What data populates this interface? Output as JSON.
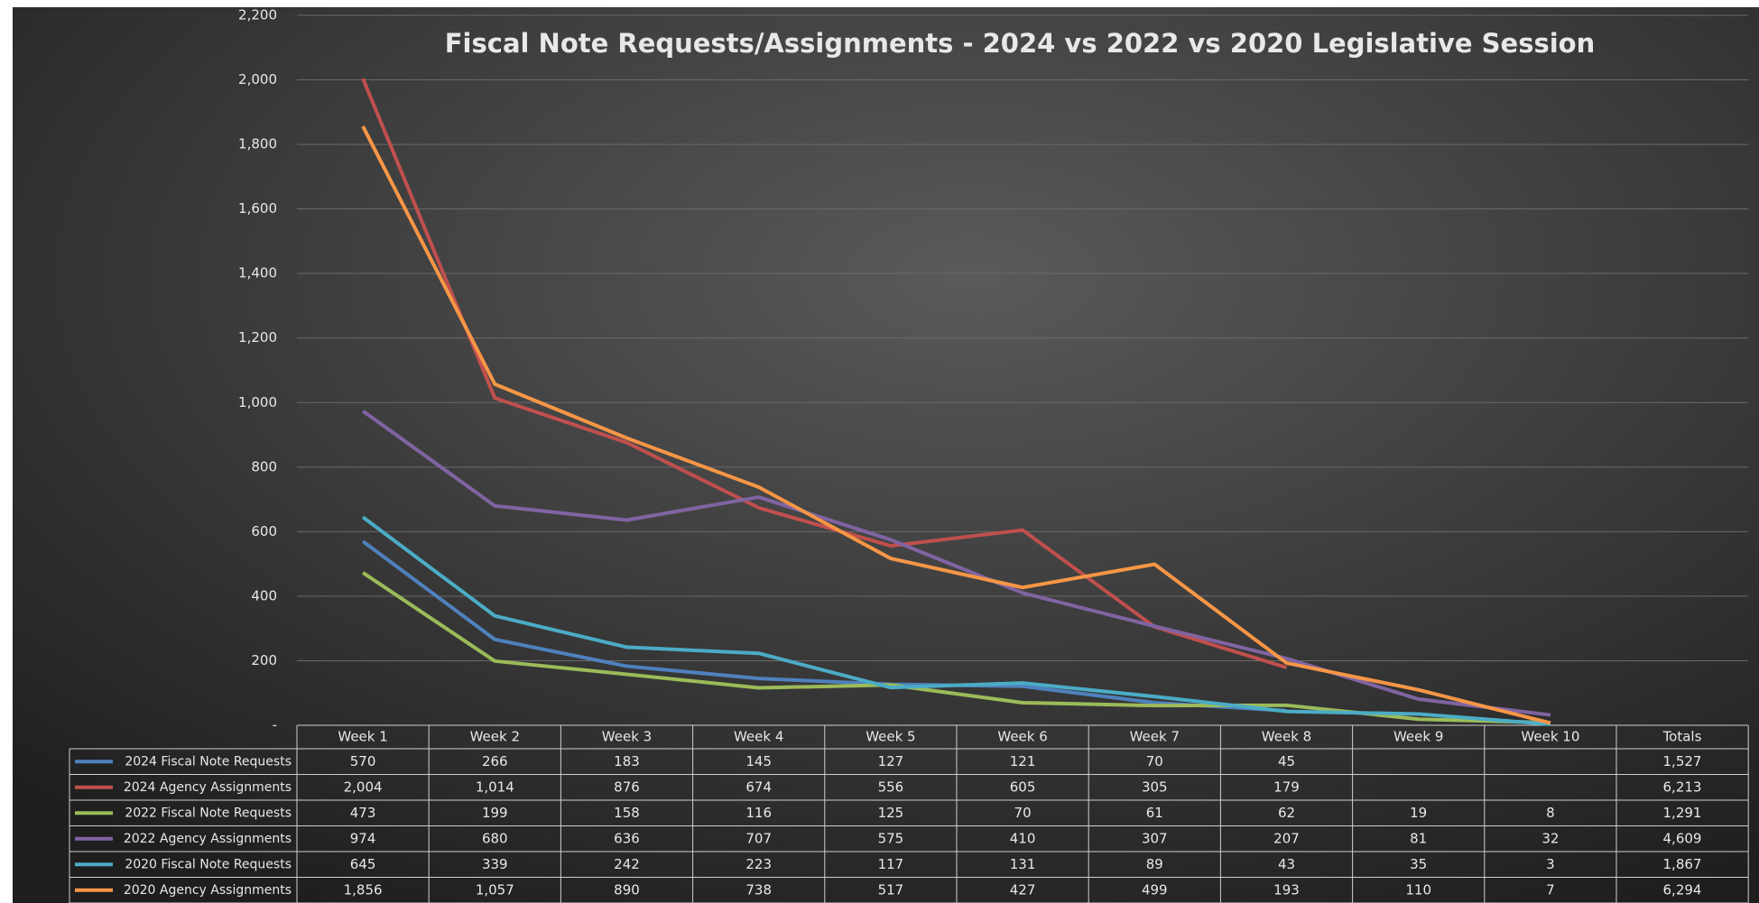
{
  "chart_data": {
    "type": "line",
    "title": "Fiscal Note Requests/Assignments - 2024 vs 2022 vs 2020 Legislative Session",
    "categories": [
      "Week 1",
      "Week 2",
      "Week 3",
      "Week 4",
      "Week 5",
      "Week 6",
      "Week 7",
      "Week 8",
      "Week 9",
      "Week 10"
    ],
    "totals_header": "Totals",
    "ylim": [
      0,
      2200
    ],
    "yticks": [
      {
        "value": 0,
        "label": "-"
      },
      200,
      400,
      600,
      800,
      {
        "value": 1000,
        "label": "1,000"
      },
      {
        "value": 1200,
        "label": "1,200"
      },
      {
        "value": 1400,
        "label": "1,400"
      },
      {
        "value": 1600,
        "label": "1,600"
      },
      {
        "value": 1800,
        "label": "1,800"
      },
      {
        "value": 2000,
        "label": "2,000"
      },
      {
        "value": 2200,
        "label": "2,200"
      }
    ],
    "grid": true,
    "series": [
      {
        "name": "2024 Fiscal Note Requests",
        "color": "#4f81bd",
        "values": [
          570,
          266,
          183,
          145,
          127,
          121,
          70,
          45,
          null,
          null
        ],
        "value_labels": [
          "570",
          "266",
          "183",
          "145",
          "127",
          "121",
          "70",
          "45",
          null,
          null
        ],
        "total": "1,527"
      },
      {
        "name": "2024 Agency Assignments",
        "color": "#c0504d",
        "values": [
          2004,
          1014,
          876,
          674,
          556,
          605,
          305,
          179,
          null,
          null
        ],
        "value_labels": [
          "2,004",
          "1,014",
          "876",
          "674",
          "556",
          "605",
          "305",
          "179",
          null,
          null
        ],
        "total": "6,213"
      },
      {
        "name": "2022 Fiscal Note Requests",
        "color": "#9bbb59",
        "values": [
          473,
          199,
          158,
          116,
          125,
          70,
          61,
          62,
          19,
          8
        ],
        "value_labels": [
          "473",
          "199",
          "158",
          "116",
          "125",
          "70",
          "61",
          "62",
          "19",
          "8"
        ],
        "total": "1,291"
      },
      {
        "name": "2022 Agency Assignments",
        "color": "#8064a2",
        "values": [
          974,
          680,
          636,
          707,
          575,
          410,
          307,
          207,
          81,
          32
        ],
        "value_labels": [
          "974",
          "680",
          "636",
          "707",
          "575",
          "410",
          "307",
          "207",
          "81",
          "32"
        ],
        "total": "4,609"
      },
      {
        "name": "2020 Fiscal Note Requests",
        "color": "#4bacc6",
        "values": [
          645,
          339,
          242,
          223,
          117,
          131,
          89,
          43,
          35,
          3
        ],
        "value_labels": [
          "645",
          "339",
          "242",
          "223",
          "117",
          "131",
          "89",
          "43",
          "35",
          "3"
        ],
        "total": "1,867"
      },
      {
        "name": "2020 Agency Assignments",
        "color": "#f79646",
        "values": [
          1856,
          1057,
          890,
          738,
          517,
          427,
          499,
          193,
          110,
          7
        ],
        "value_labels": [
          "1,856",
          "1,057",
          "890",
          "738",
          "517",
          "427",
          "499",
          "193",
          "110",
          "7"
        ],
        "total": "6,294"
      }
    ]
  }
}
